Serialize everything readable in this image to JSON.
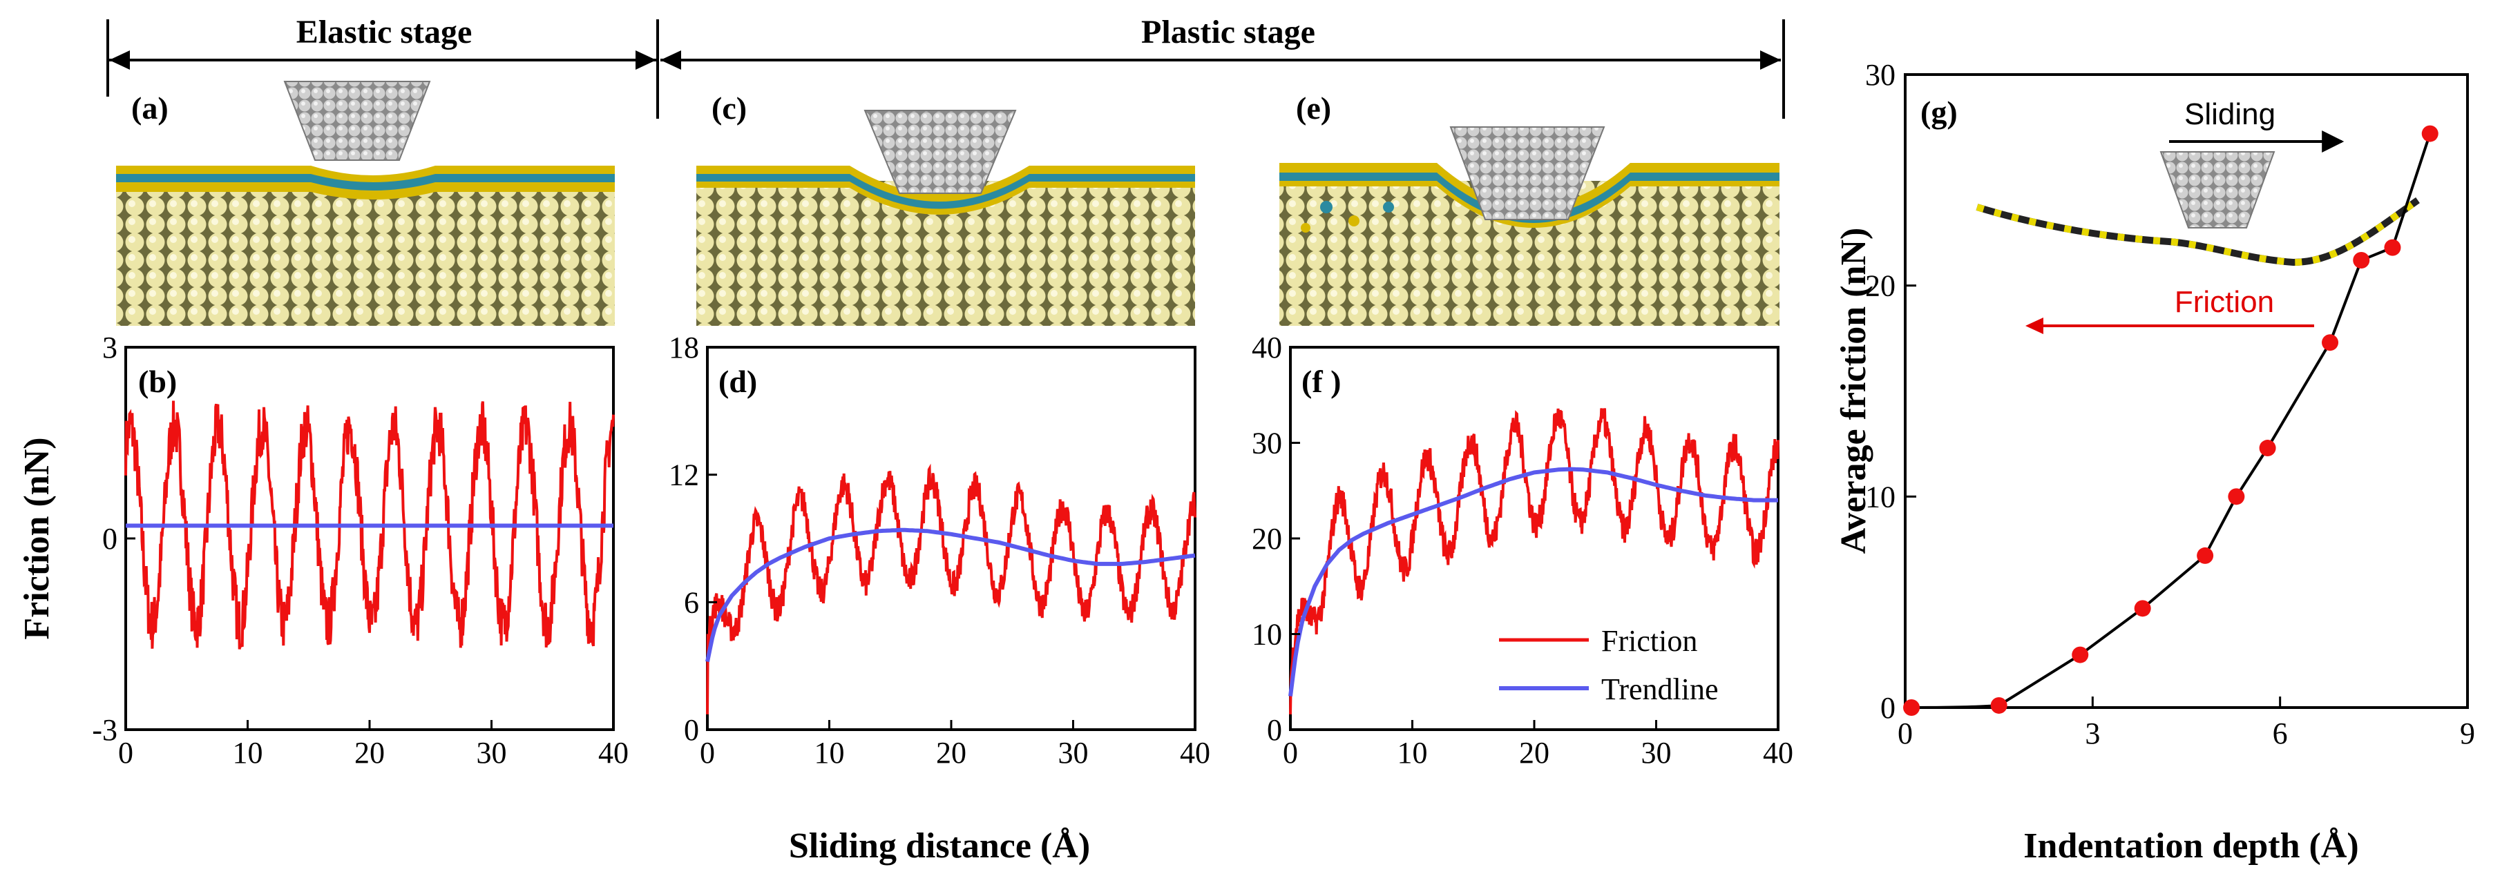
{
  "stages": {
    "elastic": "Elastic stage",
    "plastic": "Plastic stage"
  },
  "panel_labels": {
    "a": "(a)",
    "b": "(b)",
    "c": "(c)",
    "d": "(d)",
    "e": "(e)",
    "f": "(f )",
    "g": "(g)"
  },
  "shared": {
    "xlabel": "Sliding distance (Å)",
    "ylabel": "Friction (nN)",
    "xticks": [
      "0",
      "10",
      "20",
      "30",
      "40"
    ]
  },
  "legend": {
    "friction": "Friction",
    "trendline": "Trendline"
  },
  "inset": {
    "sliding": "Sliding",
    "friction": "Friction"
  },
  "colors": {
    "friction": "#ee1111",
    "trendline": "#5a5aee",
    "points": "#ee1111",
    "silicon_layer": "#e8e0a0",
    "coating_top": "#d6b400",
    "coating_mid": "#2a8aa0",
    "tip": "#b8b8b8",
    "inset_arrow": "#e00000"
  },
  "chart_data": [
    {
      "panel": "b",
      "type": "line",
      "xlim": [
        0,
        40
      ],
      "ylim": [
        -3,
        3
      ],
      "yticks": [
        "3",
        "0",
        "-3"
      ],
      "series": [
        {
          "name": "Friction",
          "style": "oscillating",
          "baseline": 0.2,
          "amplitude": 1.55,
          "period_A": 3.6
        },
        {
          "name": "Trendline",
          "x": [
            0,
            40
          ],
          "y": [
            0.2,
            0.2
          ]
        }
      ]
    },
    {
      "panel": "d",
      "type": "line",
      "xlim": [
        0,
        40
      ],
      "ylim": [
        0,
        18
      ],
      "yticks": [
        "18",
        "12",
        "6",
        "0"
      ],
      "series": [
        {
          "name": "Friction",
          "style": "oscillating_around_trend",
          "amplitude": 2.4,
          "period_A": 3.6
        },
        {
          "name": "Trendline",
          "x": [
            0,
            0.5,
            1,
            2,
            3,
            4,
            5,
            6,
            8,
            10,
            12,
            14,
            16,
            18,
            20,
            22,
            24,
            26,
            28,
            30,
            32,
            34,
            36,
            38,
            40
          ],
          "y": [
            3.2,
            4.6,
            5.4,
            6.3,
            6.9,
            7.4,
            7.8,
            8.1,
            8.6,
            9.0,
            9.2,
            9.35,
            9.4,
            9.35,
            9.2,
            9.0,
            8.8,
            8.5,
            8.2,
            7.95,
            7.8,
            7.8,
            7.9,
            8.05,
            8.2
          ]
        }
      ]
    },
    {
      "panel": "f",
      "type": "line",
      "xlim": [
        0,
        40
      ],
      "ylim": [
        0,
        40
      ],
      "yticks": [
        "40",
        "30",
        "20",
        "10",
        "0"
      ],
      "series": [
        {
          "name": "Friction",
          "style": "oscillating_around_trend",
          "amplitude": 5.5,
          "period_A": 3.6
        },
        {
          "name": "Trendline",
          "x": [
            0,
            0.5,
            1,
            2,
            3,
            4,
            5,
            6,
            8,
            10,
            12,
            14,
            16,
            18,
            20,
            22,
            23,
            24,
            26,
            28,
            30,
            32,
            34,
            36,
            38,
            40
          ],
          "y": [
            3.5,
            8.5,
            11.5,
            15.0,
            17.3,
            18.8,
            19.8,
            20.5,
            21.6,
            22.5,
            23.4,
            24.3,
            25.3,
            26.2,
            26.9,
            27.2,
            27.25,
            27.2,
            26.9,
            26.3,
            25.6,
            25.0,
            24.5,
            24.2,
            24.0,
            24.0
          ]
        }
      ]
    },
    {
      "panel": "g",
      "type": "scatter",
      "title": "",
      "xlabel": "Indentation depth (Å)",
      "ylabel": "Average friction (nN)",
      "xlim": [
        0,
        9
      ],
      "ylim": [
        0,
        30
      ],
      "xticks": [
        "0",
        "3",
        "6",
        "9"
      ],
      "yticks": [
        "30",
        "20",
        "10",
        "0"
      ],
      "x": [
        0.1,
        1.5,
        2.8,
        3.8,
        4.8,
        5.3,
        5.8,
        6.8,
        7.3,
        7.8,
        8.4
      ],
      "y": [
        0.0,
        0.1,
        2.5,
        4.7,
        7.2,
        10.0,
        12.3,
        17.3,
        21.2,
        21.8,
        27.2
      ]
    }
  ]
}
